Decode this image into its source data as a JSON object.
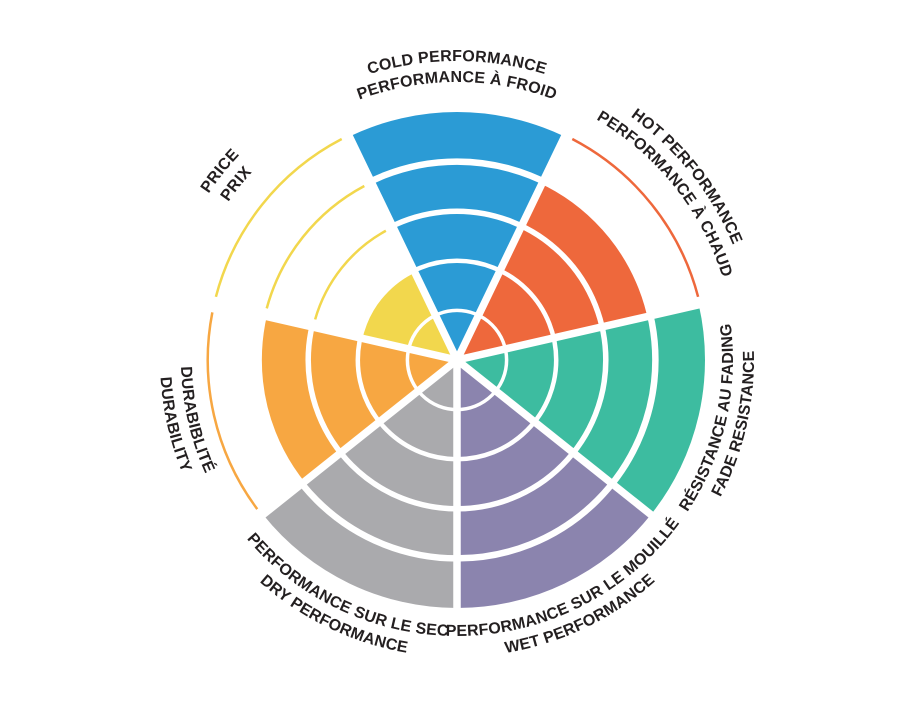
{
  "chart_data": {
    "type": "bar",
    "title": "",
    "layout": {
      "coordinate_system": "polar",
      "first_sector_centered_at": "top",
      "direction": "clockwise",
      "rings": 5,
      "grid": "white ring separators over fills, thin colored arcs on unfilled rings",
      "legend": "none",
      "background_color": "#FFFFFF",
      "separator_color": "#FFFFFF",
      "text_color": "#231F20"
    },
    "scale": {
      "min": 0,
      "max": 5
    },
    "sectors": [
      {
        "id": "cold-performance",
        "line1": "COLD PERFORMANCE",
        "line2": "PERFORMANCE À FROID",
        "value": 5,
        "color": "#2B9BD5",
        "label_dir": "cw"
      },
      {
        "id": "hot-performance",
        "line1": "HOT PERFORMANCE",
        "line2": "PERFORMANCE À CHAUD",
        "value": 4,
        "color": "#EE683C",
        "label_dir": "cw"
      },
      {
        "id": "fade-resistance",
        "line1": "RÉSISTANCE AU FADING",
        "line2": "FADE RESISTANCE",
        "value": 5,
        "color": "#3DBCA0",
        "label_dir": "ccw"
      },
      {
        "id": "wet-performance",
        "line1": "PERFORMANCE SUR LE MOUILLÉ",
        "line2": "WET PERFORMANCE",
        "value": 5,
        "color": "#8B84AE",
        "label_dir": "ccw"
      },
      {
        "id": "dry-performance",
        "line1": "PERFORMANCE SUR LE SEC",
        "line2": "DRY PERFORMANCE",
        "value": 5,
        "color": "#AAAAAD",
        "label_dir": "ccw"
      },
      {
        "id": "durability",
        "line1": "DURABIBLITÉ",
        "line2": "DURABILITY",
        "value": 4,
        "color": "#F7A742",
        "label_dir": "ccw"
      },
      {
        "id": "price",
        "line1": "PRICE",
        "line2": "PRIX",
        "value": 2,
        "color": "#F2D74D",
        "label_dir": "cw"
      }
    ]
  }
}
